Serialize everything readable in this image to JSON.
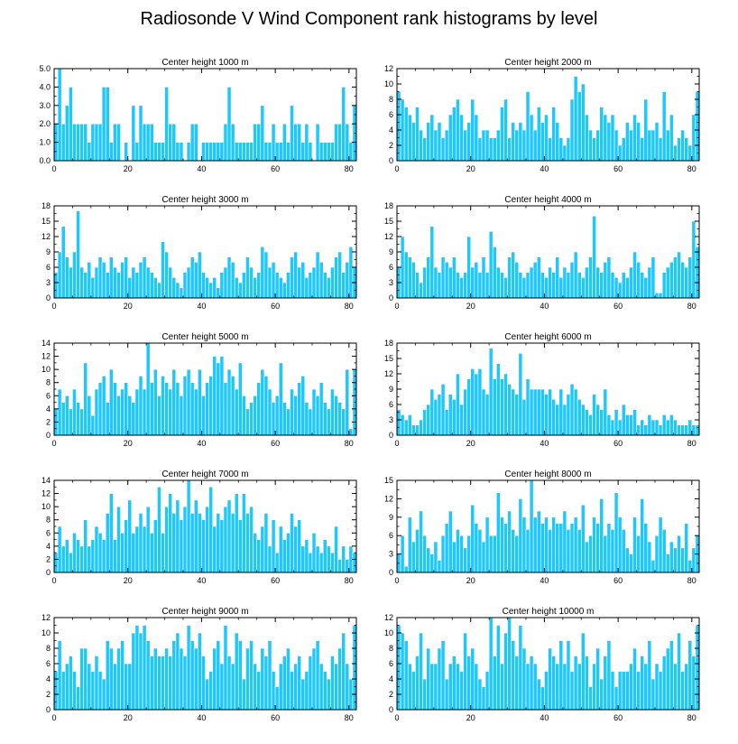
{
  "figure": {
    "title": "Radiosonde V Wind Component rank histograms by level",
    "bar_color": "#1ec8ff",
    "bar_edge_color": "#ffffff",
    "axis_color": "#000000"
  },
  "chart_data": [
    {
      "type": "bar",
      "title": "Center height 1000 m",
      "xlim": [
        0,
        82
      ],
      "ylim": [
        0,
        5
      ],
      "xticks": [
        "0",
        "20",
        "40",
        "60",
        "80"
      ],
      "yticks": [
        "0.0",
        "1.0",
        "2.0",
        "3.0",
        "4.0",
        "5.0"
      ],
      "values": [
        2,
        5,
        2,
        3,
        4,
        2,
        2,
        2,
        2,
        1,
        2,
        2,
        2,
        4,
        4,
        1,
        2,
        2,
        0,
        1,
        0,
        3,
        1,
        3,
        2,
        2,
        2,
        1,
        1,
        1,
        4,
        2,
        2,
        1,
        1,
        0,
        1,
        2,
        2,
        0,
        1,
        1,
        1,
        1,
        1,
        1,
        2,
        4,
        2,
        1,
        1,
        1,
        1,
        1,
        2,
        2,
        3,
        1,
        1,
        2,
        1,
        1,
        2,
        1,
        3,
        2,
        2,
        1,
        2,
        1,
        0,
        2,
        1,
        1,
        1,
        1,
        2,
        2,
        4,
        2,
        1,
        3
      ]
    },
    {
      "type": "bar",
      "title": "Center height 2000 m",
      "xlim": [
        0,
        82
      ],
      "ylim": [
        0,
        12
      ],
      "xticks": [
        "0",
        "20",
        "40",
        "60",
        "80"
      ],
      "yticks": [
        "0",
        "2",
        "4",
        "6",
        "8",
        "10",
        "12"
      ],
      "values": [
        9,
        8,
        7,
        6,
        5,
        7,
        4,
        3,
        5,
        6,
        4,
        5,
        3,
        4,
        6,
        7,
        8,
        6,
        4,
        5,
        8,
        6,
        3,
        4,
        4,
        3,
        3,
        4,
        7,
        8,
        3,
        5,
        4,
        5,
        4,
        9,
        6,
        4,
        7,
        5,
        6,
        3,
        7,
        5,
        3,
        2,
        3,
        8,
        11,
        9,
        10,
        6,
        4,
        3,
        4,
        7,
        6,
        5,
        6,
        4,
        2,
        3,
        5,
        4,
        6,
        5,
        3,
        8,
        4,
        4,
        5,
        3,
        9,
        4,
        6,
        2,
        3,
        4,
        3,
        2,
        6,
        9
      ]
    },
    {
      "type": "bar",
      "title": "Center height 3000 m",
      "xlim": [
        0,
        82
      ],
      "ylim": [
        0,
        18
      ],
      "xticks": [
        "0",
        "20",
        "40",
        "60",
        "80"
      ],
      "yticks": [
        "0",
        "3",
        "6",
        "9",
        "12",
        "15",
        "18"
      ],
      "values": [
        5,
        9,
        14,
        8,
        6,
        9,
        17,
        6,
        5,
        7,
        4,
        6,
        8,
        7,
        5,
        8,
        6,
        5,
        7,
        8,
        4,
        6,
        5,
        7,
        8,
        6,
        5,
        4,
        3,
        11,
        9,
        6,
        4,
        3,
        2,
        5,
        6,
        8,
        7,
        9,
        5,
        4,
        3,
        4,
        2,
        5,
        6,
        8,
        7,
        4,
        3,
        5,
        8,
        6,
        4,
        5,
        10,
        9,
        6,
        7,
        5,
        4,
        3,
        5,
        8,
        9,
        6,
        7,
        4,
        5,
        6,
        9,
        7,
        5,
        4,
        6,
        8,
        9,
        5,
        7,
        10,
        6
      ]
    },
    {
      "type": "bar",
      "title": "Center height 4000 m",
      "xlim": [
        0,
        82
      ],
      "ylim": [
        0,
        18
      ],
      "xticks": [
        "0",
        "20",
        "40",
        "60",
        "80"
      ],
      "yticks": [
        "0",
        "3",
        "6",
        "9",
        "12",
        "15",
        "18"
      ],
      "values": [
        6,
        12,
        9,
        8,
        7,
        5,
        3,
        6,
        8,
        14,
        6,
        5,
        8,
        7,
        6,
        8,
        5,
        4,
        5,
        12,
        6,
        7,
        5,
        8,
        5,
        13,
        10,
        6,
        5,
        4,
        8,
        9,
        7,
        5,
        4,
        5,
        6,
        7,
        8,
        5,
        4,
        6,
        5,
        8,
        4,
        6,
        5,
        7,
        9,
        5,
        4,
        6,
        8,
        16,
        6,
        5,
        7,
        8,
        5,
        4,
        3,
        5,
        4,
        6,
        9,
        7,
        5,
        4,
        6,
        8,
        1,
        1,
        5,
        6,
        7,
        8,
        9,
        7,
        6,
        8,
        15,
        10
      ]
    },
    {
      "type": "bar",
      "title": "Center height 5000 m",
      "xlim": [
        0,
        82
      ],
      "ylim": [
        0,
        14
      ],
      "xticks": [
        "0",
        "20",
        "40",
        "60",
        "80"
      ],
      "yticks": [
        "0",
        "2",
        "4",
        "6",
        "8",
        "10",
        "12",
        "14"
      ],
      "values": [
        4,
        7,
        5,
        6,
        4,
        7,
        5,
        4,
        11,
        6,
        3,
        7,
        8,
        9,
        5,
        10,
        8,
        6,
        7,
        8,
        6,
        5,
        7,
        9,
        7,
        14,
        8,
        10,
        6,
        9,
        8,
        7,
        10,
        8,
        6,
        9,
        10,
        8,
        7,
        10,
        6,
        8,
        9,
        12,
        11,
        12,
        8,
        10,
        9,
        7,
        11,
        6,
        4,
        5,
        6,
        8,
        10,
        9,
        7,
        5,
        6,
        11,
        5,
        4,
        7,
        6,
        8,
        9,
        5,
        4,
        7,
        6,
        8,
        5,
        4,
        7,
        6,
        5,
        4,
        10,
        1,
        10
      ]
    },
    {
      "type": "bar",
      "title": "Center height 6000 m",
      "xlim": [
        0,
        82
      ],
      "ylim": [
        0,
        18
      ],
      "xticks": [
        "0",
        "20",
        "40",
        "60",
        "80"
      ],
      "yticks": [
        "0",
        "3",
        "6",
        "9",
        "12",
        "15",
        "18"
      ],
      "values": [
        5,
        4,
        3,
        4,
        2,
        2,
        3,
        5,
        6,
        9,
        7,
        8,
        10,
        5,
        8,
        7,
        12,
        6,
        9,
        11,
        13,
        12,
        13,
        9,
        8,
        17,
        11,
        14,
        11,
        12,
        10,
        9,
        8,
        16,
        7,
        11,
        9,
        9,
        9,
        9,
        8,
        9,
        7,
        6,
        9,
        6,
        8,
        10,
        9,
        7,
        6,
        5,
        4,
        8,
        6,
        5,
        9,
        4,
        3,
        5,
        3,
        6,
        4,
        4,
        5,
        2,
        3,
        2,
        4,
        3,
        3,
        2,
        4,
        3,
        4,
        3,
        2,
        2,
        2,
        3,
        2,
        2
      ]
    },
    {
      "type": "bar",
      "title": "Center height 7000 m",
      "xlim": [
        0,
        82
      ],
      "ylim": [
        0,
        14
      ],
      "xticks": [
        "0",
        "20",
        "40",
        "60",
        "80"
      ],
      "yticks": [
        "0",
        "2",
        "4",
        "6",
        "8",
        "10",
        "12",
        "14"
      ],
      "values": [
        3,
        7,
        4,
        5,
        3,
        6,
        5,
        4,
        8,
        4,
        5,
        7,
        6,
        5,
        9,
        12,
        5,
        10,
        6,
        8,
        11,
        6,
        7,
        9,
        7,
        10,
        6,
        8,
        13,
        6,
        10,
        12,
        9,
        11,
        8,
        10,
        14,
        9,
        11,
        9,
        8,
        10,
        13,
        7,
        9,
        8,
        10,
        11,
        9,
        12,
        8,
        12,
        9,
        10,
        6,
        5,
        7,
        9,
        4,
        8,
        3,
        7,
        5,
        6,
        9,
        7,
        8,
        4,
        5,
        3,
        6,
        4,
        3,
        5,
        4,
        3,
        7,
        2,
        4,
        2,
        4,
        3
      ]
    },
    {
      "type": "bar",
      "title": "Center height 8000 m",
      "xlim": [
        0,
        82
      ],
      "ylim": [
        0,
        15
      ],
      "xticks": [
        "0",
        "20",
        "40",
        "60",
        "80"
      ],
      "yticks": [
        "0",
        "3",
        "6",
        "9",
        "12",
        "15"
      ],
      "values": [
        3,
        6,
        1,
        9,
        5,
        7,
        10,
        6,
        4,
        3,
        5,
        2,
        6,
        8,
        10,
        5,
        7,
        6,
        4,
        6,
        11,
        8,
        7,
        5,
        9,
        6,
        6,
        13,
        9,
        8,
        10,
        7,
        6,
        12,
        9,
        7,
        15,
        9,
        10,
        8,
        9,
        7,
        9,
        8,
        8,
        10,
        7,
        8,
        9,
        7,
        11,
        5,
        6,
        9,
        8,
        12,
        6,
        8,
        7,
        13,
        9,
        7,
        4,
        3,
        9,
        6,
        12,
        8,
        5,
        2,
        6,
        9,
        7,
        3,
        5,
        4,
        6,
        4,
        8,
        2,
        4,
        6
      ]
    },
    {
      "type": "bar",
      "title": "Center height 9000 m",
      "xlim": [
        0,
        82
      ],
      "ylim": [
        0,
        12
      ],
      "xticks": [
        "0",
        "20",
        "40",
        "60",
        "80"
      ],
      "yticks": [
        "0",
        "2",
        "4",
        "6",
        "8",
        "10",
        "12"
      ],
      "values": [
        5,
        9,
        5,
        6,
        7,
        5,
        3,
        8,
        8,
        6,
        5,
        7,
        5,
        4,
        9,
        8,
        6,
        8,
        9,
        6,
        6,
        10,
        11,
        10,
        11,
        9,
        7,
        8,
        7,
        7,
        8,
        7,
        9,
        10,
        8,
        7,
        11,
        9,
        8,
        10,
        7,
        4,
        5,
        8,
        9,
        6,
        11,
        7,
        6,
        10,
        9,
        4,
        8,
        9,
        6,
        5,
        8,
        7,
        9,
        5,
        3,
        6,
        7,
        8,
        5,
        6,
        7,
        4,
        5,
        7,
        8,
        9,
        6,
        5,
        4,
        7,
        6,
        8,
        10,
        6,
        4,
        11
      ]
    },
    {
      "type": "bar",
      "title": "Center height 10000 m",
      "xlim": [
        0,
        82
      ],
      "ylim": [
        0,
        12
      ],
      "xticks": [
        "0",
        "20",
        "40",
        "60",
        "80"
      ],
      "yticks": [
        "0",
        "2",
        "4",
        "6",
        "8",
        "10",
        "12"
      ],
      "values": [
        11,
        10,
        9,
        6,
        5,
        7,
        10,
        4,
        8,
        6,
        6,
        8,
        9,
        4,
        6,
        7,
        6,
        5,
        10,
        7,
        8,
        6,
        4,
        3,
        5,
        12,
        7,
        11,
        6,
        10,
        12,
        9,
        7,
        11,
        8,
        6,
        7,
        6,
        4,
        3,
        5,
        8,
        7,
        6,
        9,
        6,
        9,
        5,
        7,
        6,
        10,
        7,
        3,
        6,
        8,
        4,
        7,
        9,
        5,
        3,
        5,
        5,
        5,
        6,
        8,
        5,
        7,
        6,
        9,
        4,
        6,
        5,
        7,
        8,
        9,
        6,
        10,
        5,
        6,
        9,
        7,
        11
      ]
    }
  ]
}
